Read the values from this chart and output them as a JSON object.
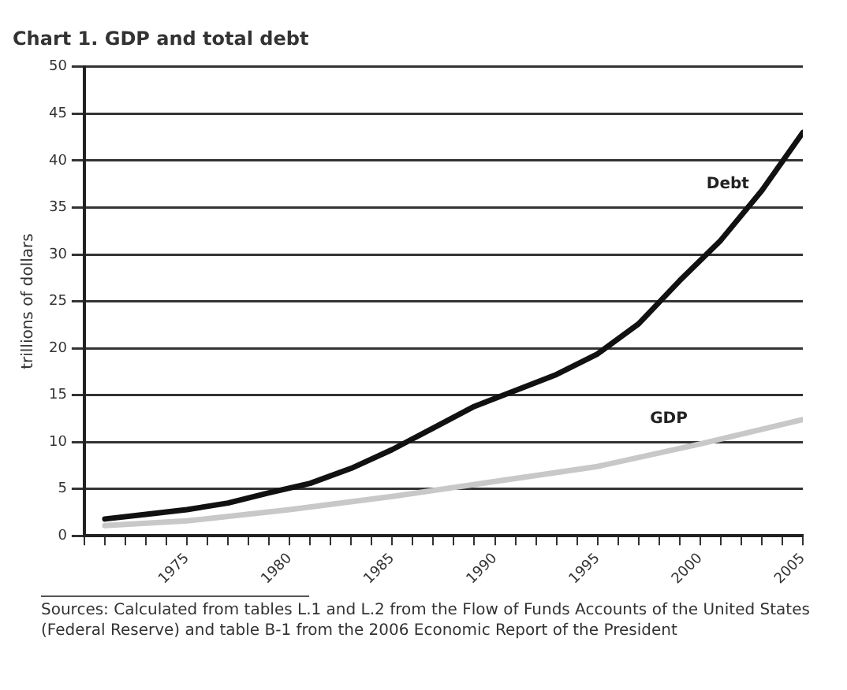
{
  "chart_data": {
    "type": "line",
    "title": "Chart 1. GDP and total debt",
    "ylabel": "trillions of dollars",
    "series": [
      {
        "name": "Debt",
        "color": "#111111",
        "x": [
          1971,
          1973,
          1975,
          1977,
          1979,
          1981,
          1983,
          1985,
          1987,
          1989,
          1991,
          1993,
          1995,
          1997,
          1999,
          2001,
          2003,
          2005
        ],
        "values": [
          1.8,
          2.3,
          2.8,
          3.5,
          4.6,
          5.6,
          7.2,
          9.2,
          11.5,
          13.8,
          15.5,
          17.2,
          19.4,
          22.6,
          27.2,
          31.5,
          36.8,
          43
        ]
      },
      {
        "name": "GDP",
        "color": "#c8c8c8",
        "x": [
          1971,
          1975,
          1980,
          1985,
          1990,
          1995,
          2000,
          2005
        ],
        "values": [
          1.1,
          1.6,
          2.8,
          4.2,
          5.8,
          7.4,
          9.8,
          12.4
        ]
      }
    ],
    "xlim": [
      1970,
      2005
    ],
    "xticks": [
      {
        "value": 1970,
        "label": null
      },
      {
        "value": 1971,
        "label": null
      },
      {
        "value": 1972,
        "label": null
      },
      {
        "value": 1973,
        "label": null
      },
      {
        "value": 1974,
        "label": null
      },
      1975,
      {
        "value": 1976,
        "label": null
      },
      {
        "value": 1977,
        "label": null
      },
      {
        "value": 1978,
        "label": null
      },
      {
        "value": 1979,
        "label": null
      },
      1980,
      {
        "value": 1981,
        "label": null
      },
      {
        "value": 1982,
        "label": null
      },
      {
        "value": 1983,
        "label": null
      },
      {
        "value": 1984,
        "label": null
      },
      1985,
      {
        "value": 1986,
        "label": null
      },
      {
        "value": 1987,
        "label": null
      },
      {
        "value": 1988,
        "label": null
      },
      {
        "value": 1989,
        "label": null
      },
      1990,
      {
        "value": 1991,
        "label": null
      },
      {
        "value": 1992,
        "label": null
      },
      {
        "value": 1993,
        "label": null
      },
      {
        "value": 1994,
        "label": null
      },
      1995,
      {
        "value": 1996,
        "label": null
      },
      {
        "value": 1997,
        "label": null
      },
      {
        "value": 1998,
        "label": null
      },
      {
        "value": 1999,
        "label": null
      },
      2000,
      {
        "value": 2001,
        "label": null
      },
      {
        "value": 2002,
        "label": null
      },
      {
        "value": 2003,
        "label": null
      },
      {
        "value": 2004,
        "label": null
      },
      2005
    ],
    "ylim": [
      0,
      50
    ],
    "yticks": [
      0,
      5,
      10,
      15,
      20,
      25,
      30,
      35,
      40,
      45,
      50
    ],
    "grid": "y",
    "legend": false,
    "marker": "none",
    "line_style": "solid",
    "annotations": [
      "Sources: Calculated from tables L.1 and L.2 from the Flow of Funds Accounts of the United States (Federal Reserve) and table B-1 from the 2006 Economic Report of the President"
    ]
  }
}
